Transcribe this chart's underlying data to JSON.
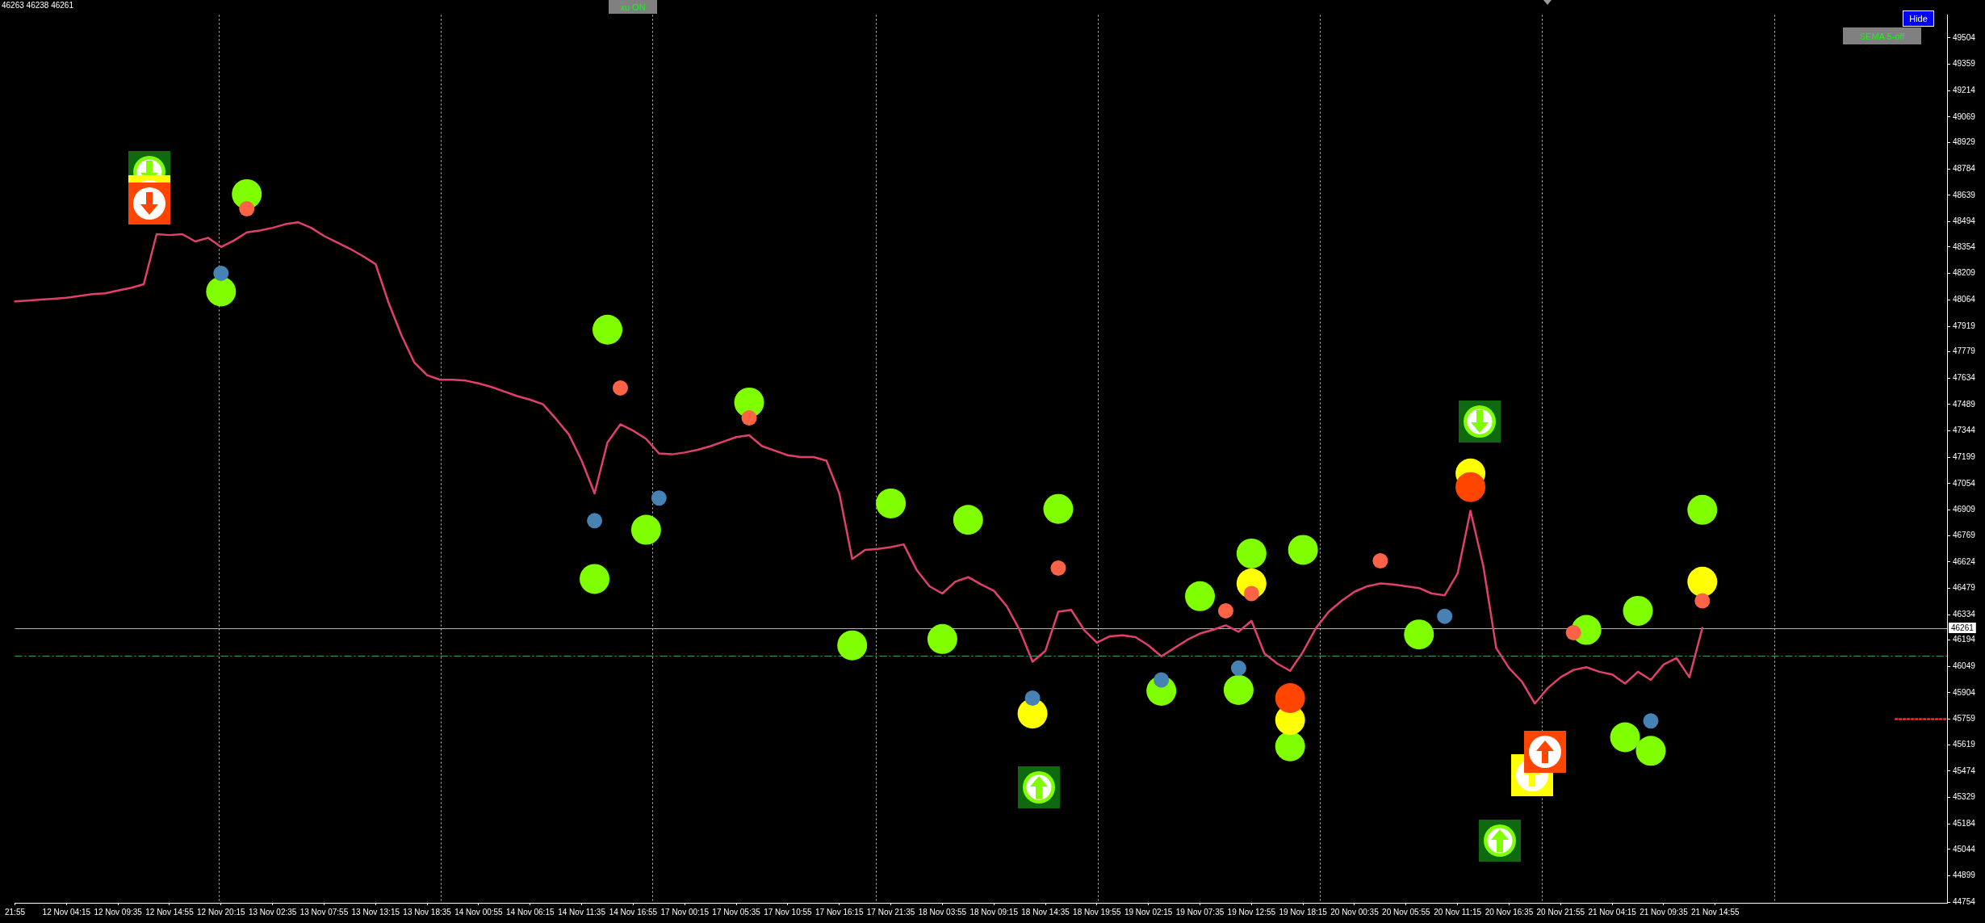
{
  "chart_data": {
    "type": "line",
    "categories": [
      "21:55",
      null,
      null,
      null,
      "12 Nov 04:15",
      null,
      null,
      null,
      "12 Nov 09:35",
      null,
      null,
      null,
      "12 Nov 14:55",
      null,
      null,
      null,
      "12 Nov 20:15",
      null,
      null,
      null,
      "13 Nov 02:35",
      null,
      null,
      null,
      "13 Nov 07:55",
      null,
      null,
      null,
      "13 Nov 13:15",
      null,
      null,
      null,
      "13 Nov 18:35",
      null,
      null,
      null,
      "14 Nov 00:55",
      null,
      null,
      null,
      "14 Nov 06:15",
      null,
      null,
      null,
      "14 Nov 11:35",
      null,
      null,
      null,
      "14 Nov 16:55",
      null,
      null,
      null,
      "17 Nov 00:15",
      null,
      null,
      null,
      "17 Nov 05:35",
      null,
      null,
      null,
      "17 Nov 10:55",
      null,
      null,
      null,
      "17 Nov 16:15",
      null,
      null,
      null,
      "17 Nov 21:35",
      null,
      null,
      null,
      "18 Nov 03:55",
      null,
      null,
      null,
      "18 Nov 09:15",
      null,
      null,
      null,
      "18 Nov 14:35",
      null,
      null,
      null,
      "18 Nov 19:55",
      null,
      null,
      null,
      "19 Nov 02:15",
      null,
      null,
      null,
      "19 Nov 07:35",
      null,
      null,
      null,
      "19 Nov 12:55",
      null,
      null,
      null,
      "19 Nov 18:15",
      null,
      null,
      null,
      "20 Nov 00:35",
      null,
      null,
      null,
      "20 Nov 05:55",
      null,
      null,
      null,
      "20 Nov 11:15",
      null,
      null,
      null,
      "20 Nov 16:35",
      null,
      null,
      null,
      "20 Nov 21:55",
      null,
      null,
      null,
      "21 Nov 04:15",
      null,
      null,
      null,
      "21 Nov 09:35",
      null,
      null,
      null,
      "21 Nov 14:55",
      null,
      null,
      null,
      null,
      null,
      null,
      null,
      null,
      null,
      null,
      null,
      null,
      null,
      null,
      null,
      null,
      null,
      null
    ],
    "ylim": [
      44750,
      49630
    ],
    "yticks": [
      44754,
      44899,
      45044,
      45184,
      45329,
      45474,
      45619,
      45759,
      45904,
      46049,
      46194,
      46334,
      46479,
      46624,
      46769,
      46909,
      47054,
      47199,
      47344,
      47489,
      47634,
      47779,
      47919,
      48064,
      48209,
      48354,
      48494,
      48639,
      48784,
      48929,
      49069,
      49214,
      49359,
      49504
    ],
    "ref_lines": [
      {
        "axis": "y",
        "value": 46261,
        "label": "46261",
        "color": "#b4b4b4",
        "line_style": "solid"
      },
      {
        "axis": "y",
        "value": 46110,
        "color": "#3a9a5a",
        "line_style": "dashed"
      }
    ],
    "annotations": [
      "46263 46238 46261",
      "xu ON",
      "Hide",
      "SEMA 5-off"
    ],
    "series": [
      {
        "color": "#e0406a",
        "values": [
          48055,
          48060,
          48065,
          48070,
          48075,
          48085,
          48095,
          48100,
          48115,
          48130,
          48150,
          48425,
          48420,
          48425,
          48385,
          48405,
          48355,
          48390,
          48435,
          48445,
          48460,
          48480,
          48490,
          48460,
          48415,
          48380,
          48345,
          48305,
          48260,
          48050,
          47870,
          47720,
          47650,
          47625,
          47625,
          47620,
          47605,
          47585,
          47560,
          47535,
          47515,
          47490,
          47410,
          47325,
          47180,
          47000,
          47280,
          47380,
          47345,
          47300,
          47220,
          47215,
          47225,
          47240,
          47260,
          47285,
          47310,
          47320,
          47260,
          47235,
          47210,
          47200,
          47200,
          47180,
          47000,
          46640,
          46690,
          46695,
          46705,
          46720,
          46580,
          46490,
          46450,
          46515,
          46540,
          46500,
          46465,
          46380,
          46250,
          46075,
          46135,
          46350,
          46360,
          46250,
          46180,
          46215,
          46220,
          46210,
          46165,
          46105,
          46150,
          46195,
          46230,
          46250,
          46275,
          46240,
          46300,
          46120,
          46065,
          46025,
          46130,
          46260,
          46350,
          46410,
          46460,
          46490,
          46505,
          46500,
          46490,
          46480,
          46450,
          46440,
          46560,
          46905,
          46600,
          46150,
          46040,
          45965,
          45845,
          45930,
          45990,
          46030,
          46045,
          46020,
          46005,
          45955,
          46020,
          45975,
          46060,
          46095,
          45990,
          46261,
          null,
          null,
          null,
          null,
          null,
          null,
          null,
          null,
          null,
          null,
          null,
          null,
          null,
          null,
          null,
          null,
          null,
          null,
          null
        ]
      },
      {
        "color": "#ff2a2a",
        "line_style": "dotted",
        "values": [
          null,
          null,
          null,
          null,
          null,
          null,
          null,
          null,
          null,
          null,
          null,
          null,
          null,
          null,
          null,
          null,
          null,
          null,
          null,
          null,
          null,
          null,
          null,
          null,
          null,
          null,
          null,
          null,
          null,
          null,
          null,
          null,
          null,
          null,
          null,
          null,
          null,
          null,
          null,
          null,
          null,
          null,
          null,
          null,
          null,
          null,
          null,
          null,
          null,
          null,
          null,
          null,
          null,
          null,
          null,
          null,
          null,
          null,
          null,
          null,
          null,
          null,
          null,
          null,
          null,
          null,
          null,
          null,
          null,
          null,
          null,
          null,
          null,
          null,
          null,
          null,
          null,
          null,
          null,
          null,
          null,
          null,
          null,
          null,
          null,
          null,
          null,
          null,
          null,
          null,
          null,
          null,
          null,
          null,
          null,
          null,
          null,
          null,
          null,
          null,
          null,
          null,
          null,
          null,
          null,
          null,
          null,
          null,
          null,
          null,
          null,
          null,
          null,
          null,
          null,
          null,
          null,
          null,
          null,
          null,
          null,
          null,
          null,
          null,
          null,
          null,
          null,
          null,
          null,
          null,
          null,
          null,
          null,
          null,
          null,
          null,
          null,
          null,
          null,
          null,
          null,
          null,
          null,
          null,
          null,
          null,
          45760,
          45760,
          45760,
          45760,
          45760
        ]
      },
      {
        "type": "scatter",
        "marker": "circle",
        "color": "#7fff00",
        "values": [
          null,
          null,
          null,
          null,
          null,
          null,
          null,
          null,
          null,
          null,
          null,
          null,
          null,
          null,
          null,
          null,
          48110,
          null,
          48645,
          null,
          null,
          null,
          null,
          null,
          null,
          null,
          null,
          null,
          null,
          null,
          null,
          null,
          null,
          null,
          null,
          null,
          null,
          null,
          null,
          null,
          null,
          null,
          null,
          null,
          null,
          46530,
          47900,
          null,
          null,
          46800,
          null,
          null,
          null,
          null,
          null,
          null,
          null,
          47500,
          null,
          null,
          null,
          null,
          null,
          null,
          null,
          46165,
          null,
          null,
          46945,
          null,
          null,
          null,
          46200,
          null,
          46855,
          null,
          null,
          null,
          null,
          null,
          null,
          46915,
          null,
          null,
          null,
          null,
          null,
          null,
          null,
          45915,
          null,
          null,
          46435,
          null,
          null,
          45920,
          46670,
          null,
          null,
          45610,
          46690,
          null,
          null,
          null,
          null,
          null,
          null,
          null,
          null,
          46225,
          null,
          null,
          null,
          null,
          null,
          null,
          null,
          null,
          null,
          null,
          null,
          null,
          46250,
          null,
          null,
          45660,
          46355,
          45585,
          null,
          null,
          null,
          46910,
          null,
          null,
          null,
          null,
          null,
          null,
          null,
          null,
          null,
          null,
          null,
          null,
          null,
          null,
          null,
          null,
          null,
          null,
          null
        ]
      },
      {
        "type": "scatter",
        "marker": "circle",
        "color": "#ffff00",
        "values": [
          null,
          null,
          null,
          null,
          null,
          null,
          null,
          null,
          null,
          null,
          null,
          null,
          null,
          null,
          null,
          null,
          null,
          null,
          null,
          null,
          null,
          null,
          null,
          null,
          null,
          null,
          null,
          null,
          null,
          null,
          null,
          null,
          null,
          null,
          null,
          null,
          null,
          null,
          null,
          null,
          null,
          null,
          null,
          null,
          null,
          null,
          null,
          null,
          null,
          null,
          null,
          null,
          null,
          null,
          null,
          null,
          null,
          null,
          null,
          null,
          null,
          null,
          null,
          null,
          null,
          null,
          null,
          null,
          null,
          null,
          null,
          null,
          null,
          null,
          null,
          null,
          null,
          null,
          null,
          45790,
          null,
          null,
          null,
          null,
          null,
          null,
          null,
          null,
          null,
          null,
          null,
          null,
          null,
          null,
          null,
          null,
          46505,
          null,
          null,
          45755,
          null,
          null,
          null,
          null,
          null,
          null,
          null,
          null,
          null,
          null,
          null,
          null,
          null,
          47110,
          null,
          null,
          null,
          null,
          null,
          null,
          null,
          null,
          null,
          null,
          null,
          null,
          null,
          null,
          null,
          null,
          null,
          46515,
          null,
          null,
          null,
          null,
          null,
          null,
          null,
          null,
          null,
          null,
          null,
          null,
          null,
          null,
          null,
          null,
          null,
          null,
          null
        ]
      },
      {
        "type": "scatter",
        "marker": "circle",
        "color": "#ff4500",
        "values": [
          null,
          null,
          null,
          null,
          null,
          null,
          null,
          null,
          null,
          null,
          null,
          null,
          null,
          null,
          null,
          null,
          null,
          null,
          null,
          null,
          null,
          null,
          null,
          null,
          null,
          null,
          null,
          null,
          null,
          null,
          null,
          null,
          null,
          null,
          null,
          null,
          null,
          null,
          null,
          null,
          null,
          null,
          null,
          null,
          null,
          null,
          null,
          null,
          null,
          null,
          null,
          null,
          null,
          null,
          null,
          null,
          null,
          null,
          null,
          null,
          null,
          null,
          null,
          null,
          null,
          null,
          null,
          null,
          null,
          null,
          null,
          null,
          null,
          null,
          null,
          null,
          null,
          null,
          null,
          null,
          null,
          null,
          null,
          null,
          null,
          null,
          null,
          null,
          null,
          null,
          null,
          null,
          null,
          null,
          null,
          null,
          null,
          null,
          null,
          45875,
          null,
          null,
          null,
          null,
          null,
          null,
          null,
          null,
          null,
          null,
          null,
          null,
          null,
          47035,
          null,
          null,
          null,
          null,
          null,
          null,
          null,
          null,
          null,
          null,
          null,
          null,
          null,
          null,
          null,
          null,
          null,
          null,
          null,
          null,
          null,
          null,
          null,
          null,
          null,
          null,
          null,
          null,
          null,
          null,
          null,
          null,
          null,
          null,
          null,
          null,
          null
        ]
      },
      {
        "type": "scatter",
        "marker": "circle",
        "color": "#ff6347",
        "values": [
          null,
          null,
          null,
          null,
          null,
          null,
          null,
          null,
          null,
          null,
          null,
          null,
          null,
          null,
          null,
          null,
          null,
          null,
          48565,
          null,
          null,
          null,
          null,
          null,
          null,
          null,
          null,
          null,
          null,
          null,
          null,
          null,
          null,
          null,
          null,
          null,
          null,
          null,
          null,
          null,
          null,
          null,
          null,
          null,
          null,
          null,
          null,
          47580,
          null,
          null,
          null,
          null,
          null,
          null,
          null,
          null,
          null,
          47415,
          null,
          null,
          null,
          null,
          null,
          null,
          null,
          null,
          null,
          null,
          null,
          null,
          null,
          null,
          null,
          null,
          null,
          null,
          null,
          null,
          null,
          null,
          null,
          46590,
          null,
          null,
          null,
          null,
          null,
          null,
          null,
          null,
          null,
          null,
          null,
          null,
          46355,
          null,
          46450,
          null,
          null,
          null,
          null,
          null,
          null,
          null,
          null,
          null,
          46630,
          null,
          null,
          null,
          null,
          null,
          null,
          null,
          null,
          null,
          null,
          null,
          null,
          null,
          null,
          46235,
          null,
          null,
          null,
          null,
          null,
          null,
          null,
          null,
          null,
          46410,
          null,
          null,
          null,
          null,
          null,
          null,
          null,
          null,
          null,
          null,
          null,
          null,
          null,
          null,
          null,
          null,
          null,
          null,
          null
        ]
      },
      {
        "type": "scatter",
        "marker": "circle",
        "color": "#4682b4",
        "values": [
          null,
          null,
          null,
          null,
          null,
          null,
          null,
          null,
          null,
          null,
          null,
          null,
          null,
          null,
          null,
          null,
          48210,
          null,
          null,
          null,
          null,
          null,
          null,
          null,
          null,
          null,
          null,
          null,
          null,
          null,
          null,
          null,
          null,
          null,
          null,
          null,
          null,
          null,
          null,
          null,
          null,
          null,
          null,
          null,
          null,
          46850,
          null,
          null,
          null,
          null,
          46975,
          null,
          null,
          null,
          null,
          null,
          null,
          null,
          null,
          null,
          null,
          null,
          null,
          null,
          null,
          null,
          null,
          null,
          null,
          null,
          null,
          null,
          null,
          null,
          null,
          null,
          null,
          null,
          null,
          45875,
          null,
          null,
          null,
          null,
          null,
          null,
          null,
          null,
          null,
          45975,
          null,
          null,
          null,
          null,
          null,
          46040,
          null,
          null,
          null,
          null,
          null,
          null,
          null,
          null,
          null,
          null,
          null,
          null,
          null,
          null,
          null,
          46325,
          null,
          null,
          null,
          null,
          null,
          null,
          null,
          null,
          null,
          null,
          null,
          null,
          null,
          null,
          null,
          45750,
          null,
          null,
          null,
          null,
          null,
          null,
          null,
          null,
          null,
          null,
          null,
          null,
          null,
          null,
          null,
          null,
          null,
          null,
          null,
          null,
          null,
          null,
          null
        ]
      }
    ]
  }
}
